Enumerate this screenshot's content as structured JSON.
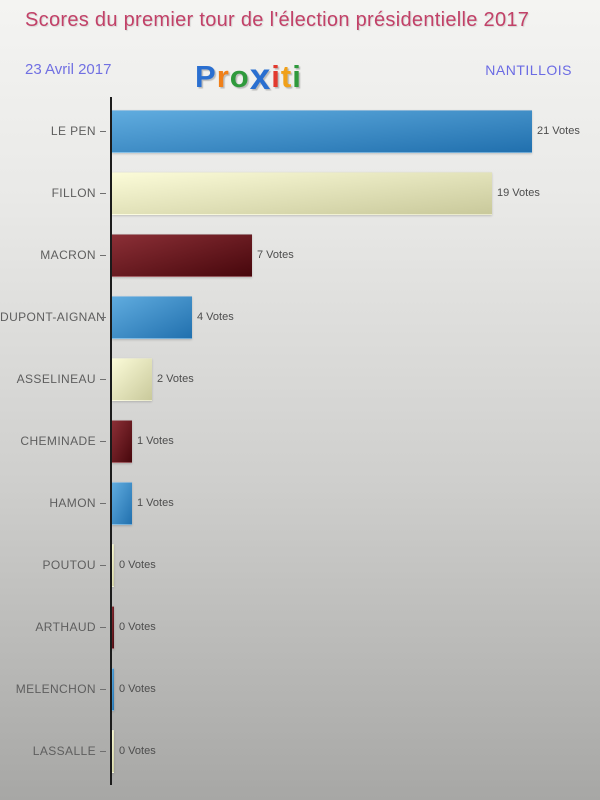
{
  "header": {
    "title": "Scores du premier tour de l'élection présidentielle 2017",
    "title_color": "#c24168",
    "date": "23 Avril 2017",
    "location": "NANTILLOIS",
    "accent_blue_violet": "#6b6be4",
    "logo": {
      "name": "Proxiti",
      "letters": [
        {
          "ch": "P",
          "color": "#2a6fd0",
          "big": false
        },
        {
          "ch": "r",
          "color": "#f08019",
          "big": false
        },
        {
          "ch": "o",
          "color": "#2f9a3c",
          "big": false
        },
        {
          "ch": "x",
          "color": "#2a6fd0",
          "big": true
        },
        {
          "ch": "i",
          "color": "#e23a2e",
          "big": false
        },
        {
          "ch": "t",
          "color": "#f0a019",
          "big": false
        },
        {
          "ch": "i",
          "color": "#2f9a3c",
          "big": false
        }
      ]
    }
  },
  "chart_data": {
    "type": "bar",
    "orientation": "horizontal",
    "title": "Scores du premier tour de l'élection présidentielle 2017",
    "categories": [
      "LE PEN",
      "FILLON",
      "MACRON",
      "DUPONT-AIGNAN",
      "ASSELINEAU",
      "CHEMINADE",
      "HAMON",
      "POUTOU",
      "ARTHAUD",
      "MELENCHON",
      "LASSALLE"
    ],
    "values": [
      21,
      19,
      7,
      4,
      2,
      1,
      1,
      0,
      0,
      0,
      0
    ],
    "value_labels": [
      "21 Votes",
      "19 Votes",
      "7 Votes",
      "4 Votes",
      "2 Votes",
      "1 Votes",
      "1 Votes",
      "0 Votes",
      "0 Votes",
      "0 Votes",
      "0 Votes"
    ],
    "unit": "Votes",
    "xlim": [
      0,
      21
    ],
    "grid": false,
    "legend": "none",
    "axis_color": "#1c1c1c",
    "label_color": "#5e5e5e",
    "color_cycle": [
      {
        "name": "blue",
        "from": "#60acdf",
        "to": "#2170ae"
      },
      {
        "name": "cream",
        "from": "#fbfbd8",
        "to": "#c9c99b"
      },
      {
        "name": "darkred",
        "from": "#8b2f36",
        "to": "#47070c"
      }
    ]
  }
}
